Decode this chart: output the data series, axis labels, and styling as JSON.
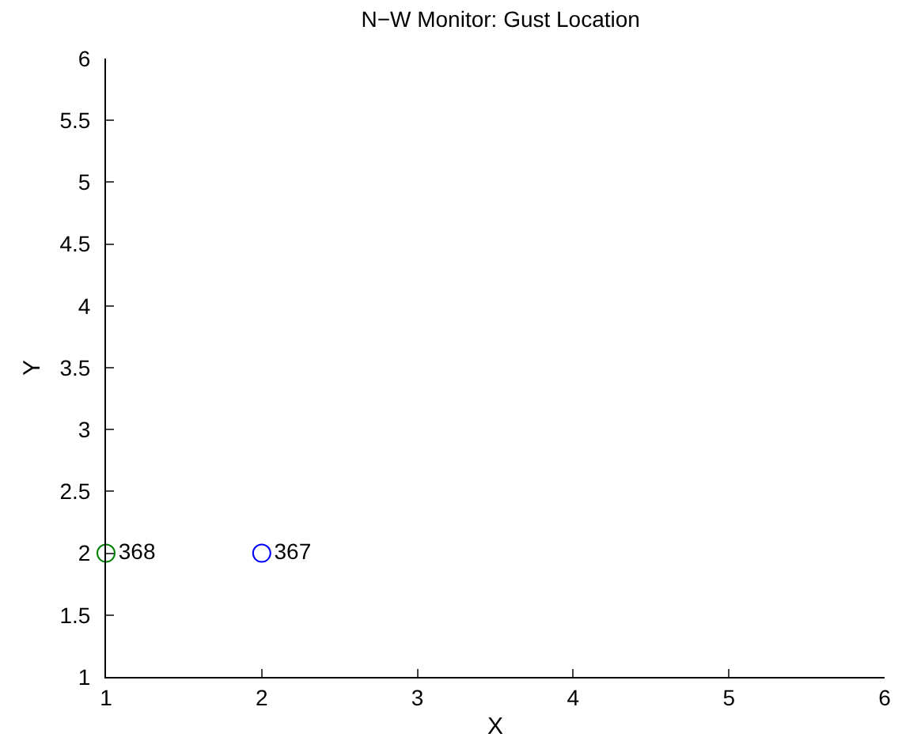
{
  "chart_data": {
    "type": "scatter",
    "title": "N−W Monitor: Gust Location",
    "xlabel": "X",
    "ylabel": "Y",
    "xlim": [
      1,
      6
    ],
    "xticks": [
      1,
      2,
      3,
      4,
      5,
      6
    ],
    "ylim": [
      1,
      6
    ],
    "yticks": [
      1,
      1.5,
      2,
      2.5,
      3,
      3.5,
      4,
      4.5,
      5,
      5.5,
      6
    ],
    "legend": false,
    "marker": "circle",
    "series": [
      {
        "name": "368",
        "color": "#008000",
        "x": [
          1
        ],
        "values": [
          2
        ]
      },
      {
        "name": "367",
        "color": "#0000ff",
        "x": [
          2
        ],
        "values": [
          2
        ]
      }
    ]
  }
}
